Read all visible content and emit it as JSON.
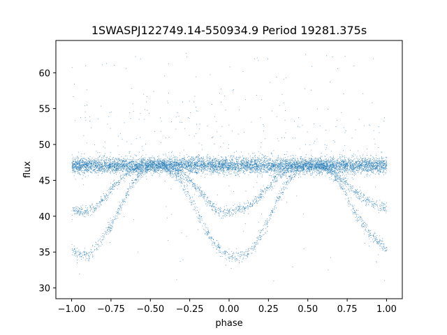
{
  "chart_data": {
    "type": "scatter",
    "title": "1SWASPJ122749.14-550934.9 Period 19281.375s",
    "xlabel": "phase",
    "ylabel": "flux",
    "xlim": [
      -1.1,
      1.1
    ],
    "ylim": [
      28.5,
      64.5
    ],
    "xticks": [
      -1.0,
      -0.75,
      -0.5,
      -0.25,
      0.0,
      0.25,
      0.5,
      0.75,
      1.0
    ],
    "xtick_labels": [
      "−1.00",
      "−0.75",
      "−0.50",
      "−0.25",
      "0.00",
      "0.25",
      "0.50",
      "0.75",
      "1.00"
    ],
    "yticks": [
      30,
      35,
      40,
      45,
      50,
      55,
      60
    ],
    "ytick_labels": [
      "30",
      "35",
      "40",
      "45",
      "50",
      "55",
      "60"
    ],
    "grid": false,
    "marker_color": "#1f77b4",
    "series": [
      {
        "phase": [
          -1.0,
          -0.95,
          -0.9,
          -0.85,
          -0.8,
          -0.75,
          -0.7,
          -0.65,
          -0.6,
          -0.55,
          -0.5,
          -0.45,
          -0.4,
          -0.35,
          -0.3,
          -0.25,
          -0.2,
          -0.15,
          -0.1,
          -0.05,
          0.0,
          0.05,
          0.1,
          0.15,
          0.2,
          0.25,
          0.3,
          0.35,
          0.4,
          0.45,
          0.5,
          0.55,
          0.6,
          0.65,
          0.7,
          0.75,
          0.8,
          0.85,
          0.9,
          0.95,
          1.0
        ],
        "baseline_flux": [
          47.1,
          47.1,
          47.1,
          47.1,
          47.1,
          47.1,
          47.1,
          47.1,
          47.1,
          47.1,
          47.1,
          47.1,
          47.1,
          47.1,
          47.1,
          47.1,
          47.1,
          47.1,
          47.1,
          47.1,
          47.1,
          47.1,
          47.1,
          47.1,
          47.1,
          47.1,
          47.1,
          47.1,
          47.1,
          47.1,
          47.1,
          47.1,
          47.1,
          47.1,
          47.1,
          47.1,
          47.1,
          47.1,
          47.1,
          47.1,
          47.1
        ],
        "shallow_dip_flux": [
          41.0,
          40.6,
          40.6,
          41.2,
          42.4,
          43.8,
          45.0,
          46.0,
          46.6,
          47.0,
          47.1,
          47.1,
          47.0,
          46.6,
          46.0,
          45.0,
          43.8,
          42.4,
          41.2,
          40.6,
          40.6,
          41.0,
          41.2,
          41.8,
          43.0,
          44.2,
          45.5,
          46.4,
          47.0,
          47.1,
          47.1,
          47.1,
          47.0,
          46.4,
          45.6,
          44.5,
          43.4,
          42.5,
          41.9,
          41.5,
          41.2
        ],
        "deep_dip_flux": [
          35.5,
          34.5,
          34.6,
          35.6,
          37.0,
          38.8,
          41.0,
          43.2,
          45.0,
          46.3,
          47.0,
          47.1,
          46.8,
          46.0,
          44.6,
          42.7,
          40.4,
          38.2,
          36.4,
          35.2,
          34.6,
          34.4,
          34.6,
          35.6,
          37.4,
          39.6,
          42.0,
          44.2,
          45.8,
          46.7,
          47.0,
          47.1,
          46.8,
          46.0,
          44.6,
          42.7,
          40.6,
          38.8,
          37.4,
          36.3,
          35.6
        ]
      }
    ]
  }
}
